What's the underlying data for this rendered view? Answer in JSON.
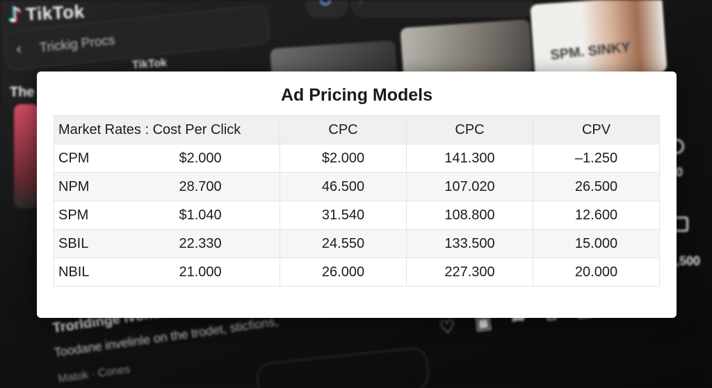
{
  "background": {
    "app_name": "TikTok",
    "nav_back_text": "Trickig Procs",
    "section_label": "The",
    "thumb_label": "TikTok",
    "thumb_overlay_text": "SPM. SINKY",
    "right_count_1": "0",
    "right_count_2": ",500",
    "caption_title": "Trorldingе Ivone sun",
    "caption_line": "Toodane invelinle on the trodet, sticfions,",
    "caption_user": "Matok · Cones"
  },
  "card": {
    "title": "Ad Pricing Models",
    "table": {
      "headers": [
        "Market Rates : Cost Per Click",
        "CPC",
        "CPC",
        "CPV"
      ],
      "rows": [
        {
          "name": "CPM",
          "values": [
            "$2.000",
            "$2.000",
            "141.300",
            "–1.250"
          ]
        },
        {
          "name": "NPM",
          "values": [
            "28.700",
            "46.500",
            "107.020",
            "26.500"
          ]
        },
        {
          "name": "SPM",
          "values": [
            "$1.040",
            "31.540",
            "108.800",
            "12.600"
          ]
        },
        {
          "name": "SBIL",
          "values": [
            "22.330",
            "24.550",
            "133.500",
            "15.000"
          ]
        },
        {
          "name": "NBIL",
          "values": [
            "21.000",
            "26.000",
            "227.300",
            "20.000"
          ]
        }
      ]
    }
  },
  "colors": {
    "card_background": "#ffffff",
    "header_row": "#f0f0f0",
    "app_background": "#141414"
  }
}
